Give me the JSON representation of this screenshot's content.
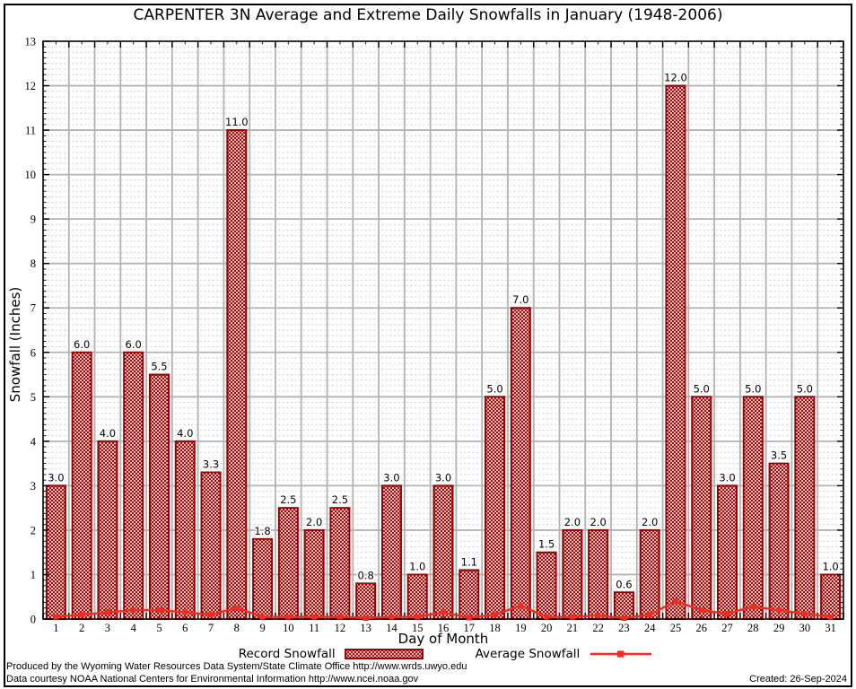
{
  "title": "CARPENTER 3N Average and Extreme Daily Snowfalls in January (1948-2006)",
  "y_axis": {
    "label": "Snowfall (Inches)"
  },
  "x_axis": {
    "label": "Day of Month"
  },
  "legend": {
    "record": "Record Snowfall",
    "average": "Average Snowfall"
  },
  "footer": {
    "line1": "Produced by the Wyoming Water Resources Data System/State Climate Office http://www.wrds.uwyo.edu",
    "line2": "Data courtesy NOAA National Centers for Environmental Information http://www.ncei.noaa.gov",
    "created": "Created: 26-Sep-2024"
  },
  "colors": {
    "bar_red": "#990000",
    "line_red": "#f22b1e",
    "major_grid": "#b3b3b3",
    "minor_grid": "#cfcfcf",
    "frame": "#000000",
    "background": "#ffffff"
  },
  "chart_data": {
    "type": "bar",
    "title": "CARPENTER 3N Average and Extreme Daily Snowfalls in January (1948-2006)",
    "xlabel": "Day of Month",
    "ylabel": "Snowfall (Inches)",
    "ylim": [
      0,
      13
    ],
    "y_tick_step": 1,
    "grid": true,
    "legend_position": "bottom",
    "categories": [
      1,
      2,
      3,
      4,
      5,
      6,
      7,
      8,
      9,
      10,
      11,
      12,
      13,
      14,
      15,
      16,
      17,
      18,
      19,
      20,
      21,
      22,
      23,
      24,
      25,
      26,
      27,
      28,
      29,
      30,
      31
    ],
    "series": [
      {
        "name": "Record Snowfall",
        "type": "bar",
        "values": [
          3.0,
          6.0,
          4.0,
          6.0,
          5.5,
          4.0,
          3.3,
          11.0,
          1.8,
          2.5,
          2.0,
          2.5,
          0.8,
          3.0,
          1.0,
          3.0,
          1.1,
          5.0,
          7.0,
          1.5,
          2.0,
          2.0,
          0.6,
          2.0,
          12.0,
          5.0,
          3.0,
          5.0,
          3.5,
          5.0,
          1.0
        ]
      },
      {
        "name": "Average Snowfall",
        "type": "line",
        "values": [
          0.05,
          0.1,
          0.15,
          0.2,
          0.2,
          0.15,
          0.1,
          0.25,
          0.05,
          0.05,
          0.05,
          0.05,
          0.02,
          0.05,
          0.05,
          0.15,
          0.03,
          0.1,
          0.3,
          0.05,
          0.05,
          0.08,
          0.02,
          0.1,
          0.4,
          0.2,
          0.12,
          0.28,
          0.2,
          0.12,
          0.05
        ]
      }
    ]
  }
}
